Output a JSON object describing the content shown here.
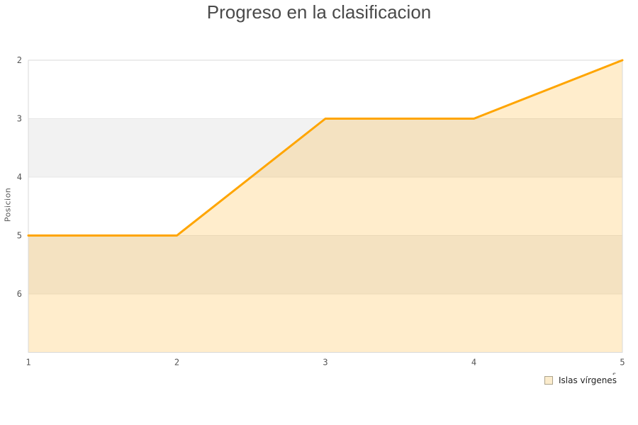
{
  "header": {
    "title": "Progreso en la clasificacion"
  },
  "chart_data": {
    "type": "line",
    "title": "Progreso en la clasificacion",
    "xlabel_visible_fragment": "s",
    "ylabel": "Posicion",
    "x": [
      1,
      2,
      3,
      4,
      5
    ],
    "series": [
      {
        "name": "Islas vírgenes",
        "values": [
          5,
          5,
          3,
          3,
          2
        ]
      }
    ],
    "x_ticks": [
      1,
      2,
      3,
      4,
      5
    ],
    "y_ticks": [
      2,
      3,
      4,
      5,
      6
    ],
    "xlim": [
      1,
      5
    ],
    "ylim": [
      2,
      7
    ],
    "y_inverted": true,
    "grid": true,
    "area_fill": true,
    "bands": [
      [
        3,
        4
      ],
      [
        5,
        6
      ]
    ],
    "legend_position": "bottom-right",
    "colors": {
      "line": "#FFA500",
      "area_fill": "rgba(255,165,0,0.2)",
      "band": "#F2F2F2",
      "grid": "#E6E6E6",
      "border": "#D9D9D9",
      "tick_text": "#555555",
      "title_text": "#4A4A4A",
      "axis_title_text": "#555555",
      "legend_text": "#222222",
      "legend_swatch_fill": "#FBECCD",
      "legend_swatch_border": "#ADA48C"
    }
  }
}
